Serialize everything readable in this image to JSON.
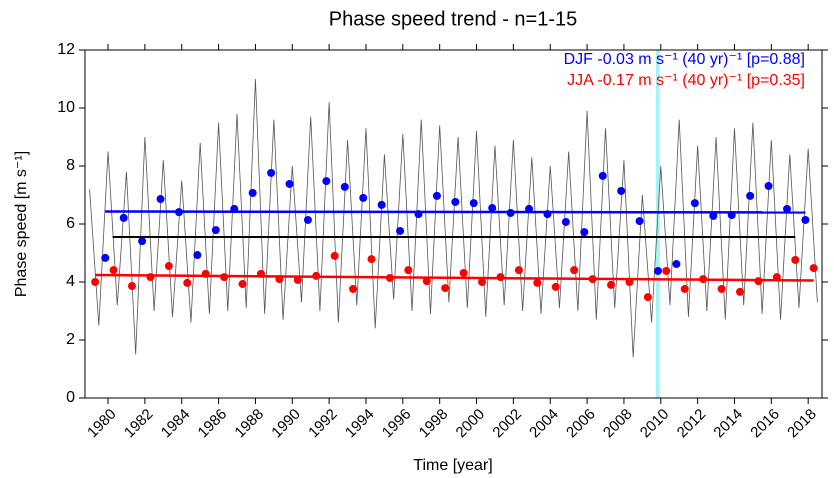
{
  "chart_data": {
    "type": "scatter",
    "title": "Phase speed trend - n=1-15",
    "x_label": "Time [year]",
    "y_label": "Phase speed [m s⁻¹]",
    "xlim": [
      1978.75,
      2018.75
    ],
    "xticks": [
      1980,
      1982,
      1984,
      1986,
      1988,
      1990,
      1992,
      1994,
      1996,
      1998,
      2000,
      2002,
      2004,
      2006,
      2008,
      2010,
      2012,
      2014,
      2016,
      2018
    ],
    "ylim": [
      0,
      12
    ],
    "yticks": [
      0,
      2,
      4,
      6,
      8,
      10,
      12
    ],
    "highlight_x": 2009.84,
    "highlight_color": "#a8f4f4",
    "annotations": [
      {
        "text": "DJF -0.03 m s⁻¹ (40 yr)⁻¹ [p=0.88]",
        "color": "#0000ff"
      },
      {
        "text": "JJA -0.17 m s⁻¹ (40 yr)⁻¹ [p=0.35]",
        "color": "#ff0000"
      }
    ],
    "series": [
      {
        "style": "line",
        "color": "#555555",
        "x": [
          1979,
          1979.5,
          1980,
          1980.5,
          1981,
          1981.5,
          1982,
          1982.5,
          1983,
          1983.5,
          1984,
          1984.5,
          1985,
          1985.5,
          1986,
          1986.5,
          1987,
          1987.5,
          1988,
          1988.5,
          1989,
          1989.5,
          1990,
          1990.5,
          1991,
          1991.5,
          1992,
          1992.5,
          1993,
          1993.5,
          1994,
          1994.5,
          1995,
          1995.5,
          1996,
          1996.5,
          1997,
          1997.5,
          1998,
          1998.5,
          1999,
          1999.5,
          2000,
          2000.5,
          2001,
          2001.5,
          2002,
          2002.5,
          2003,
          2003.5,
          2004,
          2004.5,
          2005,
          2005.5,
          2006,
          2006.5,
          2007,
          2007.5,
          2008,
          2008.5,
          2009,
          2009.5,
          2010,
          2010.5,
          2011,
          2011.5,
          2012,
          2012.5,
          2013,
          2013.5,
          2014,
          2014.5,
          2015,
          2015.5,
          2016,
          2016.5,
          2017,
          2017.5,
          2018,
          2018.5
        ],
        "values": [
          7.2,
          2.5,
          8.5,
          3.2,
          7.8,
          1.5,
          9.0,
          3.0,
          8.2,
          2.8,
          7.5,
          2.6,
          8.8,
          2.9,
          9.5,
          3.0,
          9.8,
          3.1,
          11.0,
          2.9,
          9.6,
          2.7,
          8.0,
          3.3,
          9.7,
          3.0,
          10.2,
          2.6,
          8.9,
          3.2,
          9.3,
          2.4,
          8.4,
          3.4,
          9.1,
          3.0,
          9.6,
          2.9,
          9.4,
          3.3,
          9.0,
          3.1,
          9.2,
          2.8,
          8.7,
          3.2,
          8.9,
          3.0,
          8.3,
          2.9,
          8.0,
          3.1,
          8.5,
          3.0,
          9.9,
          2.7,
          9.3,
          3.1,
          8.2,
          1.4,
          7.0,
          2.6,
          8.0,
          3.2,
          9.6,
          2.8,
          8.7,
          3.0,
          9.0,
          2.7,
          9.3,
          3.2,
          9.5,
          2.9,
          8.9,
          2.7,
          8.4,
          3.1,
          8.6,
          3.3
        ]
      },
      {
        "style": "line",
        "color": "#000000",
        "width": 2,
        "x": [
          1980.25,
          2017.3
        ],
        "values": [
          5.55,
          5.55
        ]
      },
      {
        "style": "line",
        "color": "#0000ff",
        "width": 2.5,
        "x": [
          1979.85,
          2017.85
        ],
        "values": [
          6.43,
          6.4
        ]
      },
      {
        "style": "line",
        "color": "#ff0000",
        "width": 2.5,
        "x": [
          1979.3,
          2018.3
        ],
        "values": [
          4.24,
          4.05
        ]
      },
      {
        "style": "marker",
        "color": "#0000ff",
        "x": [
          1979.85,
          1980.85,
          1981.85,
          1982.85,
          1983.85,
          1984.85,
          1985.85,
          1986.85,
          1987.85,
          1988.85,
          1989.85,
          1990.85,
          1991.85,
          1992.85,
          1993.85,
          1994.85,
          1995.85,
          1996.85,
          1997.85,
          1998.85,
          1999.85,
          2000.85,
          2001.85,
          2002.85,
          2003.85,
          2004.85,
          2005.85,
          2006.85,
          2007.85,
          2008.85,
          2009.85,
          2010.85,
          2011.85,
          2012.85,
          2013.85,
          2014.85,
          2015.85,
          2016.85,
          2017.85
        ],
        "values": [
          4.83,
          6.21,
          5.41,
          6.86,
          6.41,
          4.93,
          5.79,
          6.52,
          7.07,
          7.76,
          7.38,
          6.14,
          7.48,
          7.28,
          6.9,
          6.66,
          5.76,
          6.34,
          6.97,
          6.76,
          6.72,
          6.55,
          6.38,
          6.52,
          6.34,
          6.07,
          5.72,
          7.66,
          7.14,
          6.1,
          4.38,
          4.62,
          6.72,
          6.28,
          6.31,
          6.97,
          7.31,
          6.52,
          6.14
        ]
      },
      {
        "style": "marker",
        "color": "#ff0000",
        "x": [
          1979.3,
          1980.3,
          1981.3,
          1982.3,
          1983.3,
          1984.3,
          1985.3,
          1986.3,
          1987.3,
          1988.3,
          1989.3,
          1990.3,
          1991.3,
          1992.3,
          1993.3,
          1994.3,
          1995.3,
          1996.3,
          1997.3,
          1998.3,
          1999.3,
          2000.3,
          2001.3,
          2002.3,
          2003.3,
          2004.3,
          2005.3,
          2006.3,
          2007.3,
          2008.3,
          2009.3,
          2010.3,
          2011.3,
          2012.3,
          2013.3,
          2014.3,
          2015.3,
          2016.3,
          2017.3,
          2018.3
        ],
        "values": [
          4.0,
          4.41,
          3.86,
          4.17,
          4.55,
          3.97,
          4.28,
          4.17,
          3.93,
          4.28,
          4.1,
          4.07,
          4.21,
          4.9,
          3.76,
          4.79,
          4.14,
          4.41,
          4.03,
          3.79,
          4.31,
          4.0,
          4.17,
          4.41,
          3.97,
          3.83,
          4.41,
          4.1,
          3.9,
          4.0,
          3.48,
          4.38,
          3.76,
          4.1,
          3.76,
          3.66,
          4.03,
          4.17,
          4.76,
          4.48
        ]
      }
    ]
  }
}
